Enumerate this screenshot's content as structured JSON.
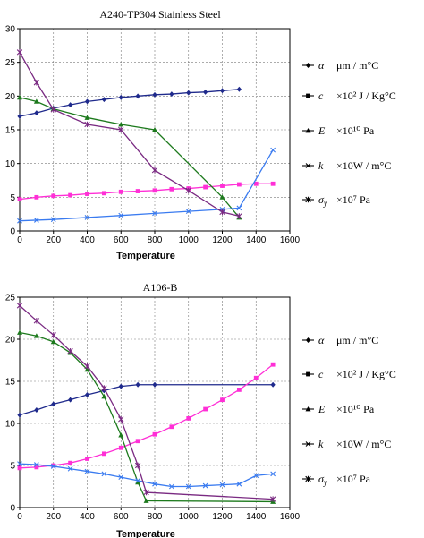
{
  "chart_data": [
    {
      "type": "line",
      "title": "A240-TP304 Stainless Steel",
      "xlabel": "Temperature",
      "ylabel": "",
      "xlim": [
        0,
        1600
      ],
      "ylim": [
        0,
        30
      ],
      "xticks": [
        "0",
        "200",
        "400",
        "600",
        "800",
        "1000",
        "1200",
        "1400",
        "1600"
      ],
      "yticks": [
        "0",
        "5",
        "10",
        "15",
        "20",
        "25",
        "30"
      ],
      "grid": true,
      "legend_position": "right",
      "series": [
        {
          "name": "α",
          "unit": "μm / m°C",
          "color": "#1f2a8c",
          "marker": "diamond",
          "x": [
            0,
            100,
            200,
            300,
            400,
            500,
            600,
            700,
            800,
            900,
            1000,
            1100,
            1200,
            1300
          ],
          "y": [
            17.0,
            17.5,
            18.2,
            18.7,
            19.2,
            19.5,
            19.8,
            20.0,
            20.2,
            20.3,
            20.5,
            20.6,
            20.8,
            21.0
          ]
        },
        {
          "name": "c",
          "unit": "×10² J / Kg°C",
          "color": "#ff2fd6",
          "marker": "square",
          "x": [
            0,
            100,
            200,
            300,
            400,
            500,
            600,
            700,
            800,
            900,
            1000,
            1100,
            1200,
            1300,
            1400,
            1500
          ],
          "y": [
            4.7,
            5.0,
            5.2,
            5.3,
            5.5,
            5.6,
            5.8,
            5.9,
            6.0,
            6.2,
            6.3,
            6.5,
            6.7,
            6.9,
            7.0,
            7.0
          ]
        },
        {
          "name": "E",
          "unit": "×10¹⁰ Pa",
          "color": "#1d7a1d",
          "marker": "triangle",
          "x": [
            0,
            100,
            200,
            400,
            600,
            800,
            1200,
            1300
          ],
          "y": [
            19.8,
            19.2,
            18.1,
            16.8,
            15.8,
            15.0,
            5.0,
            2.0
          ]
        },
        {
          "name": "k",
          "unit": "×10W / m°C",
          "color": "#3a7bf0",
          "marker": "cross",
          "x": [
            0,
            100,
            200,
            400,
            600,
            800,
            1000,
            1200,
            1300,
            1500
          ],
          "y": [
            1.5,
            1.6,
            1.7,
            2.0,
            2.3,
            2.6,
            2.9,
            3.2,
            3.4,
            12.0
          ]
        },
        {
          "name": "σ",
          "subscript": "y",
          "unit": "×10⁷ Pa",
          "color": "#7a2a82",
          "marker": "star",
          "x": [
            0,
            100,
            200,
            400,
            600,
            800,
            1000,
            1200,
            1300
          ],
          "y": [
            26.5,
            22.0,
            18.0,
            15.8,
            15.0,
            9.0,
            6.0,
            2.8,
            2.2
          ]
        }
      ]
    },
    {
      "type": "line",
      "title": "A106-B",
      "xlabel": "Temperature",
      "ylabel": "",
      "xlim": [
        0,
        1600
      ],
      "ylim": [
        0,
        25
      ],
      "xticks": [
        "0",
        "200",
        "400",
        "600",
        "800",
        "1000",
        "1200",
        "1400",
        "1600"
      ],
      "yticks": [
        "0",
        "5",
        "10",
        "15",
        "20",
        "25"
      ],
      "grid": true,
      "legend_position": "right",
      "series": [
        {
          "name": "α",
          "unit": "μm / m°C",
          "color": "#1f2a8c",
          "marker": "diamond",
          "x": [
            0,
            100,
            200,
            300,
            400,
            500,
            600,
            700,
            800,
            1500
          ],
          "y": [
            11.0,
            11.6,
            12.3,
            12.8,
            13.4,
            13.9,
            14.4,
            14.6,
            14.6,
            14.6
          ]
        },
        {
          "name": "c",
          "unit": "×10² J / Kg°C",
          "color": "#ff2fd6",
          "marker": "square",
          "x": [
            0,
            100,
            200,
            300,
            400,
            500,
            600,
            700,
            800,
            900,
            1000,
            1100,
            1200,
            1300,
            1400,
            1500
          ],
          "y": [
            4.7,
            4.8,
            5.0,
            5.3,
            5.8,
            6.4,
            7.1,
            7.9,
            8.7,
            9.6,
            10.6,
            11.7,
            12.8,
            14.0,
            15.4,
            17.0
          ]
        },
        {
          "name": "E",
          "unit": "×10¹⁰ Pa",
          "color": "#1d7a1d",
          "marker": "triangle",
          "x": [
            0,
            100,
            200,
            300,
            400,
            500,
            600,
            700,
            750,
            1500
          ],
          "y": [
            20.8,
            20.4,
            19.7,
            18.4,
            16.4,
            13.2,
            8.6,
            3.0,
            0.8,
            0.7
          ]
        },
        {
          "name": "k",
          "unit": "×10W / m°C",
          "color": "#3a7bf0",
          "marker": "cross",
          "x": [
            0,
            100,
            200,
            300,
            400,
            500,
            600,
            700,
            800,
            900,
            1000,
            1100,
            1200,
            1300,
            1400,
            1500
          ],
          "y": [
            5.2,
            5.1,
            4.9,
            4.6,
            4.3,
            4.0,
            3.6,
            3.2,
            2.8,
            2.5,
            2.5,
            2.6,
            2.7,
            2.8,
            3.8,
            4.0
          ]
        },
        {
          "name": "σ",
          "subscript": "y",
          "unit": "×10⁷ Pa",
          "color": "#7a2a82",
          "marker": "star",
          "x": [
            0,
            100,
            200,
            300,
            400,
            500,
            600,
            700,
            750,
            1500
          ],
          "y": [
            24.0,
            22.2,
            20.5,
            18.6,
            16.8,
            14.2,
            10.5,
            5.0,
            1.8,
            1.0
          ]
        }
      ]
    }
  ]
}
